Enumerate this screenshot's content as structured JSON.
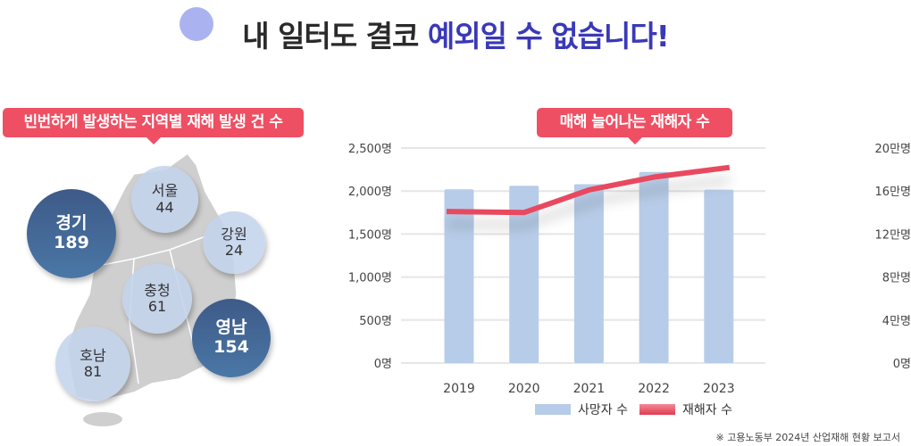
{
  "header": {
    "title_part1": "내 일터도 결코 ",
    "title_part2": "예외일 수 없습니다!"
  },
  "map_section": {
    "label": "빈번하게 발생하는 지역별 재해 발생 건 수",
    "regions": [
      {
        "name": "경기",
        "count": "189"
      },
      {
        "name": "서울",
        "count": "44"
      },
      {
        "name": "강원",
        "count": "24"
      },
      {
        "name": "충청",
        "count": "61"
      },
      {
        "name": "영남",
        "count": "154"
      },
      {
        "name": "호남",
        "count": "81"
      }
    ]
  },
  "chart_section": {
    "label": "매해 늘어나는 재해자 수"
  },
  "chart_data": {
    "type": "bar+line",
    "categories": [
      "2019",
      "2020",
      "2021",
      "2022",
      "2023"
    ],
    "series": [
      {
        "name": "사망자 수",
        "type": "bar",
        "axis": "left",
        "values": [
          2020,
          2062,
          2080,
          2223,
          2016
        ],
        "color": "#b7cce8"
      },
      {
        "name": "재해자 수",
        "type": "line",
        "axis": "right",
        "values": [
          141000,
          140000,
          161000,
          173000,
          182000
        ],
        "color": "#e84a5f"
      }
    ],
    "left_axis": {
      "ylim": [
        0,
        2500
      ],
      "ticks": [
        "0명",
        "500명",
        "1,000명",
        "1,500명",
        "2,000명",
        "2,500명"
      ]
    },
    "right_axis": {
      "ylim": [
        0,
        200000
      ],
      "ticks": [
        "0명",
        "4만명",
        "8만명",
        "12만명",
        "16만명",
        "20만명"
      ]
    },
    "grid": true,
    "legend": "bottom"
  },
  "source": "※ 고용노동부 2024년 산업재해 현황 보고서"
}
